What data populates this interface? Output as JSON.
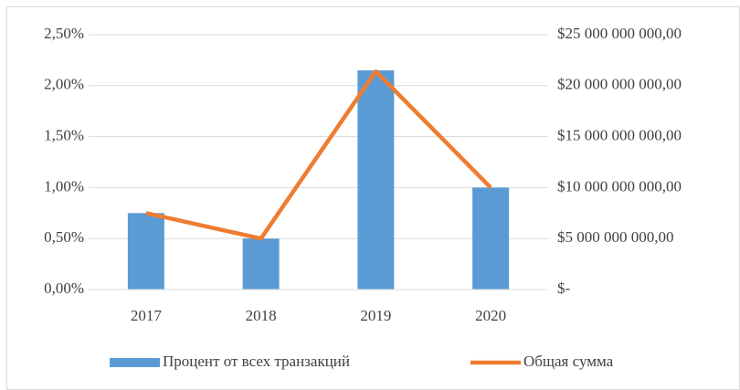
{
  "chart_data": {
    "type": "bar-line",
    "categories": [
      "2017",
      "2018",
      "2019",
      "2020"
    ],
    "series": [
      {
        "name": "Процент от всех транзакций",
        "type": "bar",
        "color": "#5b9bd5",
        "values": [
          0.75,
          0.5,
          2.15,
          1.0
        ]
      },
      {
        "name": "Общая сумма",
        "type": "line",
        "axis": "y2",
        "color": "#ed7d31",
        "values": [
          7500000000,
          5000000000,
          21400000000,
          10000000000
        ]
      }
    ],
    "ylim": [
      0,
      2.5
    ],
    "yticks": [
      {
        "value": 0,
        "label": "0,00%"
      },
      {
        "value": 0.5,
        "label": "0,50%"
      },
      {
        "value": 1.0,
        "label": "1,00%"
      },
      {
        "value": 1.5,
        "label": "1,50%"
      },
      {
        "value": 2.0,
        "label": "2,00%"
      },
      {
        "value": 2.5,
        "label": "2,50%"
      }
    ],
    "y2lim": [
      0,
      25000000000
    ],
    "y2ticks": [
      {
        "value": 0,
        "label": "$-"
      },
      {
        "value": 5000000000,
        "label": "$5 000 000 000,00"
      },
      {
        "value": 10000000000,
        "label": "$10 000 000 000,00"
      },
      {
        "value": 15000000000,
        "label": "$15 000 000 000,00"
      },
      {
        "value": 20000000000,
        "label": "$20 000 000 000,00"
      },
      {
        "value": 25000000000,
        "label": "$25 000 000 000,00"
      }
    ],
    "grid": true,
    "legend": "bottom"
  }
}
